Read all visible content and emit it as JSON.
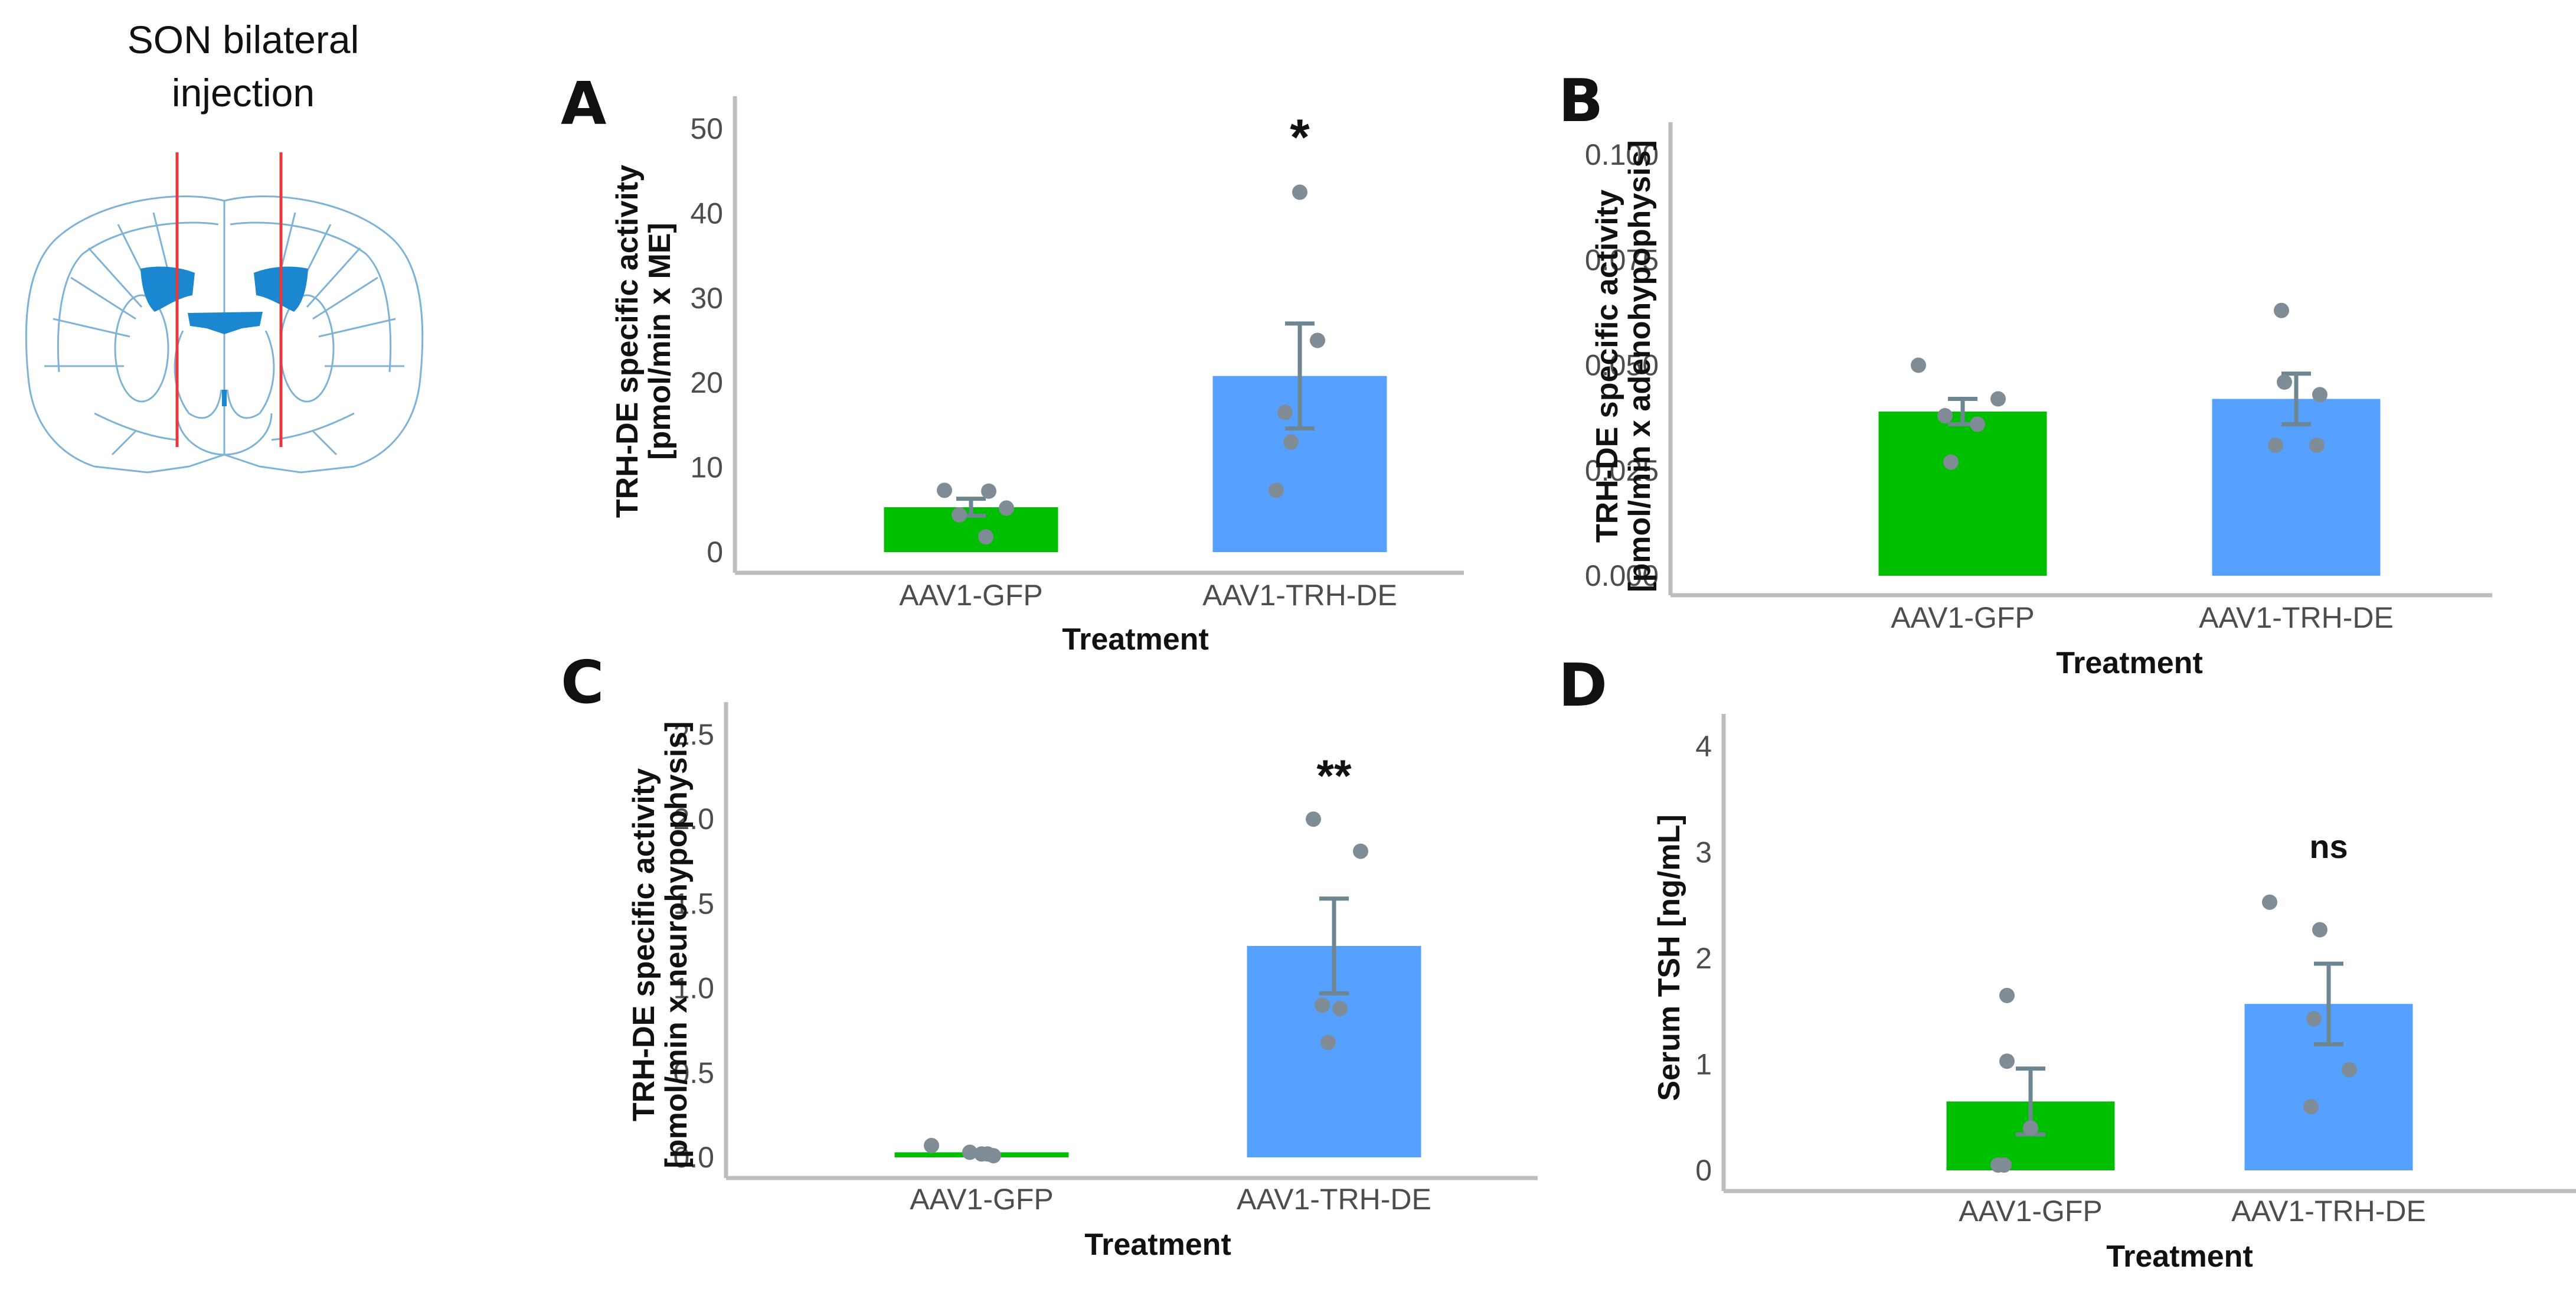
{
  "diagram": {
    "title_line1": "SON bilateral",
    "title_line2": "injection"
  },
  "colors": {
    "gfp": "#00bf00",
    "trh": "#56a0ff",
    "points": "#7f8c95",
    "errorbar": "#6e8691",
    "axis": "#bdbdbd",
    "brain_outline": "#7fb3d5",
    "son_region": "#1a87d0",
    "injection_line": "#e8383d"
  },
  "chart_data": [
    {
      "panel": "A",
      "type": "bar",
      "categories": [
        "AAV1-GFP",
        "AAV1-TRH-DE"
      ],
      "values": [
        5.3,
        20.8
      ],
      "errors": [
        1.0,
        6.2
      ],
      "points": [
        [
          7.3,
          7.2,
          5.2,
          4.4,
          1.8
        ],
        [
          42.5,
          25.0,
          16.5,
          7.3,
          13.0
        ]
      ],
      "yticks": [
        "0",
        "10",
        "20",
        "30",
        "40",
        "50"
      ],
      "ylim": [
        0,
        50
      ],
      "xlabel": "Treatment",
      "ylabel_line1": "TRH-DE specific activity",
      "ylabel_line2": "[pmol/min x ME]",
      "significance": "*"
    },
    {
      "panel": "B",
      "type": "bar",
      "categories": [
        "AAV1-GFP",
        "AAV1-TRH-DE"
      ],
      "values": [
        0.039,
        0.042
      ],
      "errors": [
        0.003,
        0.006
      ],
      "points": [
        [
          0.05,
          0.042,
          0.038,
          0.036,
          0.027
        ],
        [
          0.063,
          0.046,
          0.043,
          0.031,
          0.031
        ]
      ],
      "yticks": [
        "0.000",
        "0.025",
        "0.050",
        "0.075",
        "0.100"
      ],
      "ylim": [
        0,
        0.1
      ],
      "xlabel": "Treatment",
      "ylabel_line1": "TRH-DE specific activity",
      "ylabel_line2": "[pmol/min x adenohypophysis]",
      "significance": ""
    },
    {
      "panel": "C",
      "type": "bar",
      "categories": [
        "AAV1-GFP",
        "AAV1-TRH-DE"
      ],
      "values": [
        0.03,
        1.25
      ],
      "errors": [
        0.01,
        0.28
      ],
      "points": [
        [
          0.07,
          0.03,
          0.02,
          0.02,
          0.01
        ],
        [
          2.0,
          1.81,
          0.9,
          0.88,
          0.68
        ]
      ],
      "yticks": [
        "0.0",
        "0.5",
        "1.0",
        "1.5",
        "2.0",
        "2.5"
      ],
      "ylim": [
        0,
        2.5
      ],
      "xlabel": "Treatment",
      "ylabel_line1": "TRH-DE specific activity",
      "ylabel_line2": "[pmol/min x neurohypophysis]",
      "significance": "**"
    },
    {
      "panel": "D",
      "type": "bar",
      "categories": [
        "AAV1-GFP",
        "AAV1-TRH-DE"
      ],
      "values": [
        0.65,
        1.57
      ],
      "errors": [
        0.31,
        0.38
      ],
      "points": [
        [
          1.65,
          1.03,
          0.4,
          0.05,
          0.05
        ],
        [
          2.53,
          2.27,
          1.43,
          0.95,
          0.6
        ]
      ],
      "yticks": [
        "0",
        "1",
        "2",
        "3",
        "4"
      ],
      "ylim": [
        0,
        4
      ],
      "xlabel": "Treatment",
      "ylabel_line1": "Serum TSH [ng/mL]",
      "ylabel_line2": "",
      "significance": "ns"
    }
  ]
}
